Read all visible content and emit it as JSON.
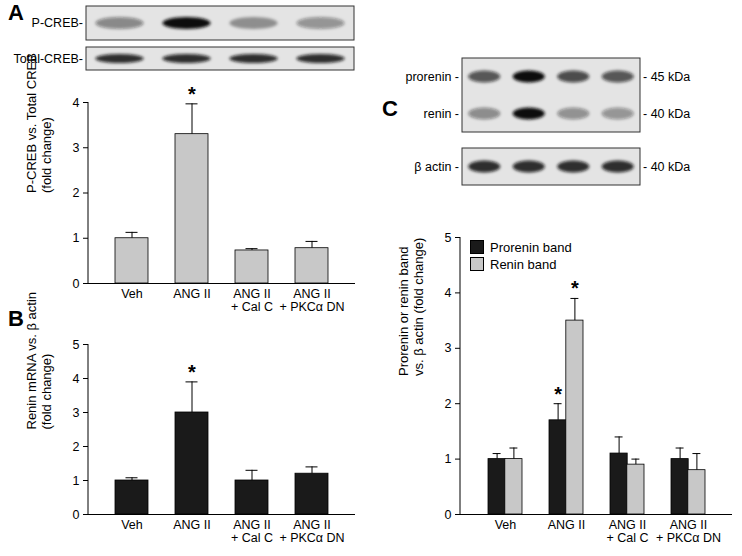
{
  "chart_data": [
    {
      "panel": "A",
      "type": "bar",
      "categories": [
        "Veh",
        "ANG II",
        "ANG II\n+ Cal C",
        "ANG II\n+ PKCα DN"
      ],
      "values": [
        1.0,
        3.3,
        0.73,
        0.78
      ],
      "errors": [
        0.13,
        0.67,
        0.04,
        0.15
      ],
      "color": "#c8c8c8",
      "y_label": [
        "P-CREB vs. Total CREB",
        "(fold change)"
      ],
      "ylim": [
        0,
        4
      ],
      "yticks": [
        0,
        1,
        2,
        3,
        4
      ],
      "annotations": [
        {
          "category": "ANG II",
          "text": "*"
        }
      ],
      "blot": {
        "boxes": [
          {
            "rows": [
              {
                "label": "P-CREB-"
              }
            ]
          },
          {
            "rows": [
              {
                "label": "Total-CREB-"
              }
            ]
          }
        ]
      }
    },
    {
      "panel": "B",
      "type": "bar",
      "categories": [
        "Veh",
        "ANG II",
        "ANG II\n+ Cal C",
        "ANG II\n+ PKCα DN"
      ],
      "values": [
        1.0,
        3.0,
        1.0,
        1.2
      ],
      "errors": [
        0.08,
        0.9,
        0.3,
        0.2
      ],
      "color": "#1a1a1a",
      "y_label": [
        "Renin mRNA vs. β actin",
        "(fold change)"
      ],
      "ylim": [
        0,
        5
      ],
      "yticks": [
        0,
        1,
        2,
        3,
        4,
        5
      ],
      "annotations": [
        {
          "category": "ANG II",
          "text": "*"
        }
      ]
    },
    {
      "panel": "C",
      "type": "bar",
      "categories": [
        "Veh",
        "ANG II",
        "ANG II\n+ Cal C",
        "ANG II\n+ PKCα DN"
      ],
      "series": [
        {
          "name": "Prorenin band",
          "color": "#1a1a1a",
          "values": [
            1.0,
            1.7,
            1.1,
            1.0
          ],
          "errors": [
            0.1,
            0.3,
            0.3,
            0.2
          ]
        },
        {
          "name": "Renin band",
          "color": "#c8c8c8",
          "values": [
            1.0,
            3.5,
            0.9,
            0.8
          ],
          "errors": [
            0.2,
            0.4,
            0.1,
            0.3
          ]
        }
      ],
      "legend": "top-left",
      "y_label": [
        "Prorenin or renin band",
        "vs. β actin (fold change)"
      ],
      "ylim": [
        0,
        5
      ],
      "yticks": [
        0,
        1,
        2,
        3,
        4,
        5
      ],
      "annotations": [
        {
          "category": "ANG II",
          "series": "Prorenin band",
          "text": "*"
        },
        {
          "category": "ANG II",
          "series": "Renin band",
          "text": "*"
        }
      ],
      "blot": {
        "boxes": [
          {
            "rows": [
              {
                "label": "prorenin -",
                "size": "- 45 kDa"
              },
              {
                "label": "renin -",
                "size": "- 40 kDa"
              }
            ]
          },
          {
            "rows": [
              {
                "label": "β actin -",
                "size": "- 40 kDa"
              }
            ]
          }
        ]
      }
    }
  ]
}
